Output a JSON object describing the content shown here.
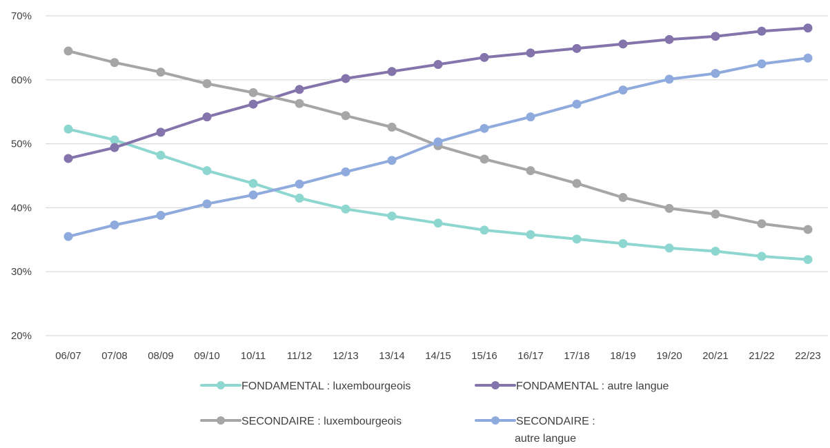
{
  "chart_data": {
    "type": "line",
    "title": "",
    "xlabel": "",
    "ylabel": "",
    "categories": [
      "06/07",
      "07/08",
      "08/09",
      "09/10",
      "10/11",
      "11/12",
      "12/13",
      "13/14",
      "14/15",
      "15/16",
      "16/17",
      "17/18",
      "18/19",
      "19/20",
      "20/21",
      "21/22",
      "22/23"
    ],
    "ylim": [
      20,
      70
    ],
    "yticks": [
      20,
      30,
      40,
      50,
      60,
      70
    ],
    "ytick_format": "%",
    "grid": "horizontal",
    "legend_position": "bottom",
    "series": [
      {
        "name": "FONDAMENTAL : luxembourgeois",
        "color": "#8ed6d0",
        "values": [
          52.3,
          50.6,
          48.2,
          45.8,
          43.8,
          41.5,
          39.8,
          38.7,
          37.6,
          36.5,
          35.8,
          35.1,
          34.4,
          33.7,
          33.2,
          32.4,
          31.9
        ]
      },
      {
        "name": "FONDAMENTAL : autre langue",
        "color": "#8474ac",
        "values": [
          47.7,
          49.4,
          51.8,
          54.2,
          56.2,
          58.5,
          60.2,
          61.3,
          62.4,
          63.5,
          64.2,
          64.9,
          65.6,
          66.3,
          66.8,
          67.6,
          68.1
        ]
      },
      {
        "name": "SECONDAIRE : luxembourgeois",
        "color": "#a6a6a6",
        "values": [
          64.5,
          62.7,
          61.2,
          59.4,
          58.0,
          56.3,
          54.4,
          52.6,
          49.7,
          47.6,
          45.8,
          43.8,
          41.6,
          39.9,
          39.0,
          37.5,
          36.6
        ]
      },
      {
        "name": "SECONDAIRE : autre langue",
        "color": "#8faadc",
        "values": [
          35.5,
          37.3,
          38.8,
          40.6,
          42.0,
          43.7,
          45.6,
          47.4,
          50.3,
          52.4,
          54.2,
          56.2,
          58.4,
          60.1,
          61.0,
          62.5,
          63.4
        ]
      }
    ],
    "legend": {
      "items": [
        {
          "series": 0,
          "lines": [
            "FONDAMENTAL : luxembourgeois"
          ]
        },
        {
          "series": 1,
          "lines": [
            "FONDAMENTAL : autre langue"
          ]
        },
        {
          "series": 2,
          "lines": [
            "SECONDAIRE : luxembourgeois"
          ]
        },
        {
          "series": 3,
          "lines": [
            "SECONDAIRE :",
            "autre langue"
          ]
        }
      ]
    }
  }
}
